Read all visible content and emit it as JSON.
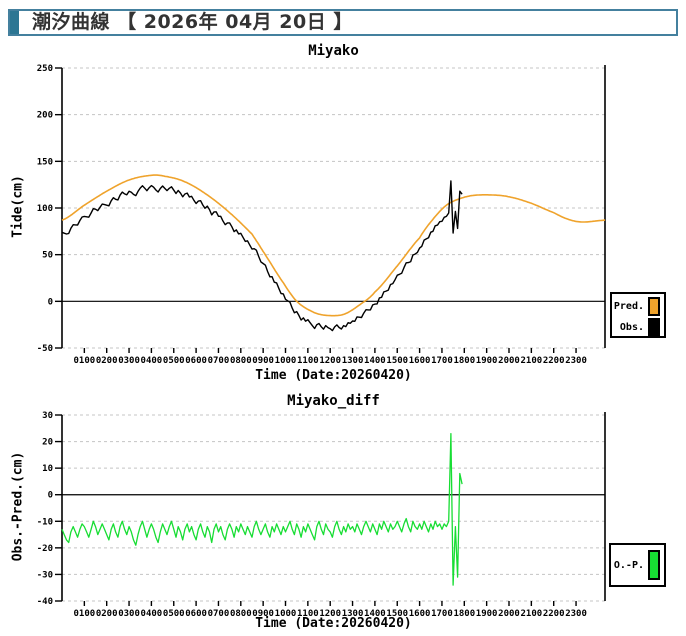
{
  "header": {
    "title": "潮汐曲線 【 2026年 04月 20日 】"
  },
  "colors": {
    "accent_bar": "#2C7693",
    "header_border": "#44809E",
    "grid": "#C4C4C4",
    "axis": "#000000",
    "pred_orange": "#EFA32C",
    "obs_black": "#000000",
    "diff_green": "#17DD33"
  },
  "chart_data": [
    {
      "type": "line",
      "title": "Miyako",
      "xlabel": "Time (Date:20260420)",
      "ylabel": "Tide(cm)",
      "ylim": [
        -50,
        250
      ],
      "yticks": [
        250,
        200,
        150,
        100,
        50,
        0,
        -50
      ],
      "xlim_hours": [
        0,
        24.3
      ],
      "xtick_hours": [
        1,
        2,
        3,
        4,
        5,
        6,
        7,
        8,
        9,
        10,
        11,
        12,
        13,
        14,
        15,
        16,
        17,
        18,
        19,
        20,
        21,
        22,
        23
      ],
      "xtick_labels": [
        "0100",
        "0200",
        "0300",
        "0400",
        "0500",
        "0600",
        "0700",
        "0800",
        "0900",
        "1000",
        "1100",
        "1200",
        "1300",
        "1400",
        "1500",
        "1600",
        "1700",
        "1800",
        "1900",
        "2000",
        "2100",
        "2200",
        "2300"
      ],
      "grid": "horizontal-dashed, zero-line-solid",
      "legend_position": "outside-right",
      "legend": [
        {
          "label": "Pred.",
          "color": "#EFA32C"
        },
        {
          "label": "Obs.",
          "color": "#000000"
        }
      ],
      "series": [
        {
          "name": "Pred.",
          "color": "#EFA32C",
          "smooth": true,
          "t": [
            0,
            1,
            2,
            3,
            4,
            4.6,
            5.5,
            6.5,
            7.5,
            8.5,
            9.2,
            9.9,
            10.5,
            11.2,
            11.8,
            12.6,
            13.3,
            14,
            15,
            16,
            16.6,
            17.2,
            17.8,
            18.4,
            19.2,
            20,
            21,
            22,
            22.7,
            23.3,
            24.3
          ],
          "v": [
            87,
            103,
            118,
            130,
            135,
            134,
            128,
            114,
            95,
            72,
            46,
            20,
            0,
            -11,
            -15,
            -14,
            -4,
            10,
            38,
            68,
            88,
            103,
            110,
            113.5,
            114,
            112,
            105,
            95,
            87.5,
            85,
            87
          ]
        },
        {
          "name": "Obs.",
          "color": "#000000",
          "derived": "pred_plus_diff",
          "t_start": 0,
          "t_step": 0.1,
          "t_end": 17.9,
          "note": "observed = predicted + O.-P. difference series; record ends ~17:54 after spike"
        }
      ]
    },
    {
      "type": "line",
      "title": "Miyako_diff",
      "xlabel": "Time (Date:20260420)",
      "ylabel": "Obs.-Pred.(cm)",
      "ylim": [
        -40,
        30
      ],
      "yticks": [
        30,
        20,
        10,
        0,
        -10,
        -20,
        -30,
        -40
      ],
      "xlim_hours": [
        0,
        24.3
      ],
      "xtick_hours": [
        1,
        2,
        3,
        4,
        5,
        6,
        7,
        8,
        9,
        10,
        11,
        12,
        13,
        14,
        15,
        16,
        17,
        18,
        19,
        20,
        21,
        22,
        23
      ],
      "xtick_labels": [
        "0100",
        "0200",
        "0300",
        "0400",
        "0500",
        "0600",
        "0700",
        "0800",
        "0900",
        "1000",
        "1100",
        "1200",
        "1300",
        "1400",
        "1500",
        "1600",
        "1700",
        "1800",
        "1900",
        "2000",
        "2100",
        "2200",
        "2300"
      ],
      "grid": "horizontal-dashed, zero-line-solid",
      "legend_position": "outside-right",
      "legend": [
        {
          "label": "O.-P.",
          "color": "#17DD33"
        }
      ],
      "series": [
        {
          "name": "O.-P.",
          "color": "#17DD33",
          "t_start": 0,
          "t_step": 0.1,
          "values": [
            -13,
            -15,
            -17,
            -18,
            -14,
            -12,
            -14,
            -16,
            -13,
            -11,
            -12,
            -14,
            -16,
            -13,
            -10,
            -12,
            -15,
            -13,
            -11,
            -13,
            -15,
            -17,
            -13,
            -11,
            -14,
            -16,
            -12,
            -10,
            -13,
            -15,
            -12,
            -14,
            -17,
            -19,
            -15,
            -12,
            -10,
            -13,
            -16,
            -13,
            -11,
            -13,
            -16,
            -18,
            -14,
            -11,
            -13,
            -15,
            -12,
            -10,
            -13,
            -16,
            -12,
            -14,
            -17,
            -13,
            -11,
            -14,
            -12,
            -15,
            -17,
            -13,
            -11,
            -14,
            -16,
            -12,
            -14,
            -18,
            -13,
            -11,
            -14,
            -12,
            -15,
            -17,
            -13,
            -11,
            -13,
            -16,
            -12,
            -14,
            -11,
            -13,
            -15,
            -12,
            -14,
            -16,
            -12,
            -10,
            -13,
            -15,
            -13,
            -11,
            -14,
            -16,
            -12,
            -14,
            -11,
            -13,
            -15,
            -12,
            -14,
            -12,
            -10,
            -13,
            -15,
            -11,
            -13,
            -16,
            -12,
            -14,
            -11,
            -13,
            -15,
            -17,
            -12,
            -10,
            -13,
            -15,
            -11,
            -13,
            -14,
            -16,
            -12,
            -10,
            -13,
            -15,
            -12,
            -14,
            -11,
            -13,
            -12,
            -14,
            -11,
            -13,
            -15,
            -12,
            -10,
            -12,
            -14,
            -11,
            -13,
            -15,
            -11,
            -13,
            -10,
            -12,
            -14,
            -11,
            -13,
            -12,
            -10,
            -12,
            -14,
            -11,
            -9,
            -12,
            -14,
            -10,
            -12,
            -13,
            -11,
            -13,
            -10,
            -12,
            -14,
            -11,
            -13,
            -10,
            -12,
            -11,
            -13,
            -11,
            -12,
            -10,
            23,
            -34,
            -12,
            -31,
            8,
            4
          ]
        }
      ]
    }
  ]
}
